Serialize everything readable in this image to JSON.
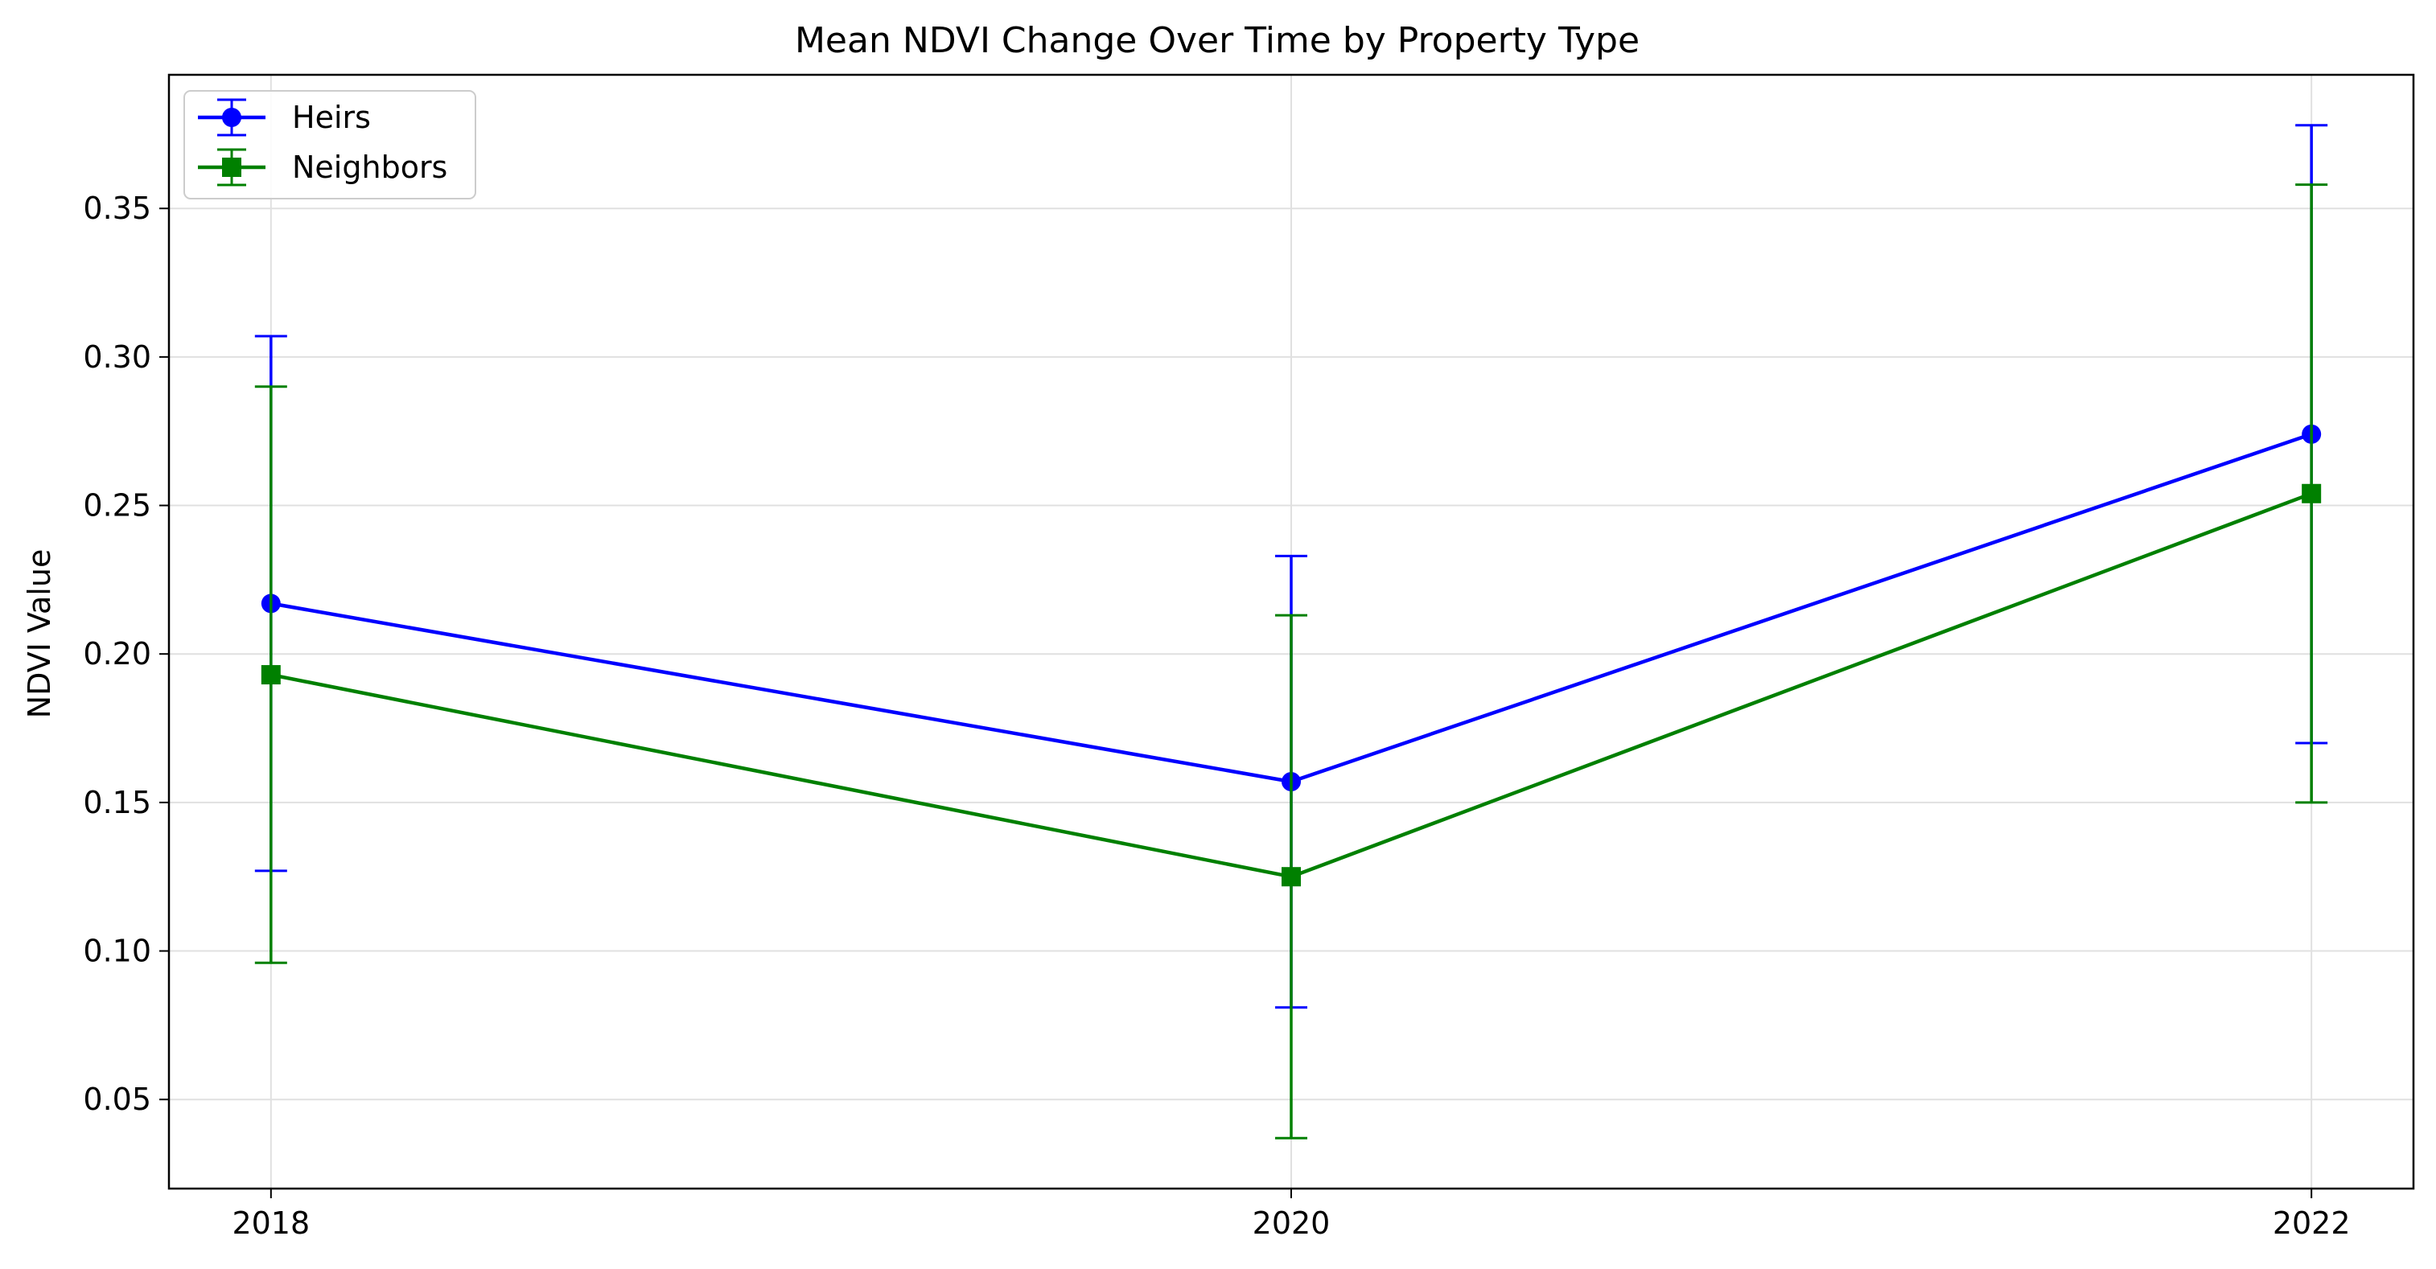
{
  "chart_data": {
    "type": "line",
    "title": "Mean NDVI Change Over Time by Property Type",
    "xlabel": "",
    "ylabel": "NDVI Value",
    "x": [
      2018,
      2020,
      2022
    ],
    "x_tick_labels": [
      "2018",
      "2020",
      "2022"
    ],
    "xlim": [
      2017.8,
      2022.2
    ],
    "ylim": [
      0.02,
      0.395
    ],
    "y_ticks": [
      0.05,
      0.1,
      0.15,
      0.2,
      0.25,
      0.3,
      0.35
    ],
    "y_tick_labels": [
      "0.05",
      "0.10",
      "0.15",
      "0.20",
      "0.25",
      "0.30",
      "0.35"
    ],
    "grid": true,
    "legend_position": "top-left",
    "series": [
      {
        "name": "Heirs",
        "color": "#0000ff",
        "marker": "circle",
        "values": [
          0.217,
          0.157,
          0.274
        ],
        "error": [
          0.09,
          0.076,
          0.104
        ]
      },
      {
        "name": "Neighbors",
        "color": "#008000",
        "marker": "square",
        "values": [
          0.193,
          0.125,
          0.254
        ],
        "error": [
          0.097,
          0.088,
          0.104
        ]
      }
    ]
  }
}
